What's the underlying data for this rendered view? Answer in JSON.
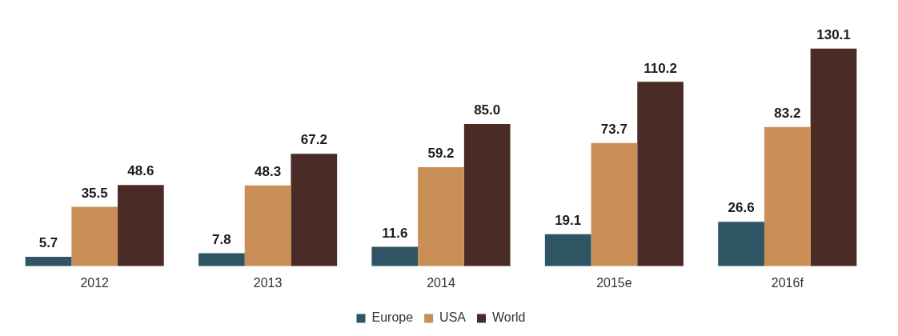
{
  "chart_data": {
    "type": "bar",
    "categories": [
      "2012",
      "2013",
      "2014",
      "2015e",
      "2016f"
    ],
    "series": [
      {
        "name": "Europe",
        "color": "#2f5565",
        "values": [
          5.7,
          7.8,
          11.6,
          19.1,
          26.6
        ],
        "value_labels": [
          "5.7",
          "7.8",
          "11.6",
          "19.1",
          "26.6"
        ]
      },
      {
        "name": "USA",
        "color": "#c98f57",
        "values": [
          35.5,
          48.3,
          59.2,
          73.7,
          83.2
        ],
        "value_labels": [
          "35.5",
          "48.3",
          "59.2",
          "73.7",
          "83.2"
        ]
      },
      {
        "name": "World",
        "color": "#4b2b26",
        "values": [
          48.6,
          67.2,
          85.0,
          110.2,
          130.1
        ],
        "value_labels": [
          "48.6",
          "67.2",
          "85.0",
          "110.2",
          "130.1"
        ]
      }
    ],
    "legend": "bottom",
    "grid": false
  }
}
